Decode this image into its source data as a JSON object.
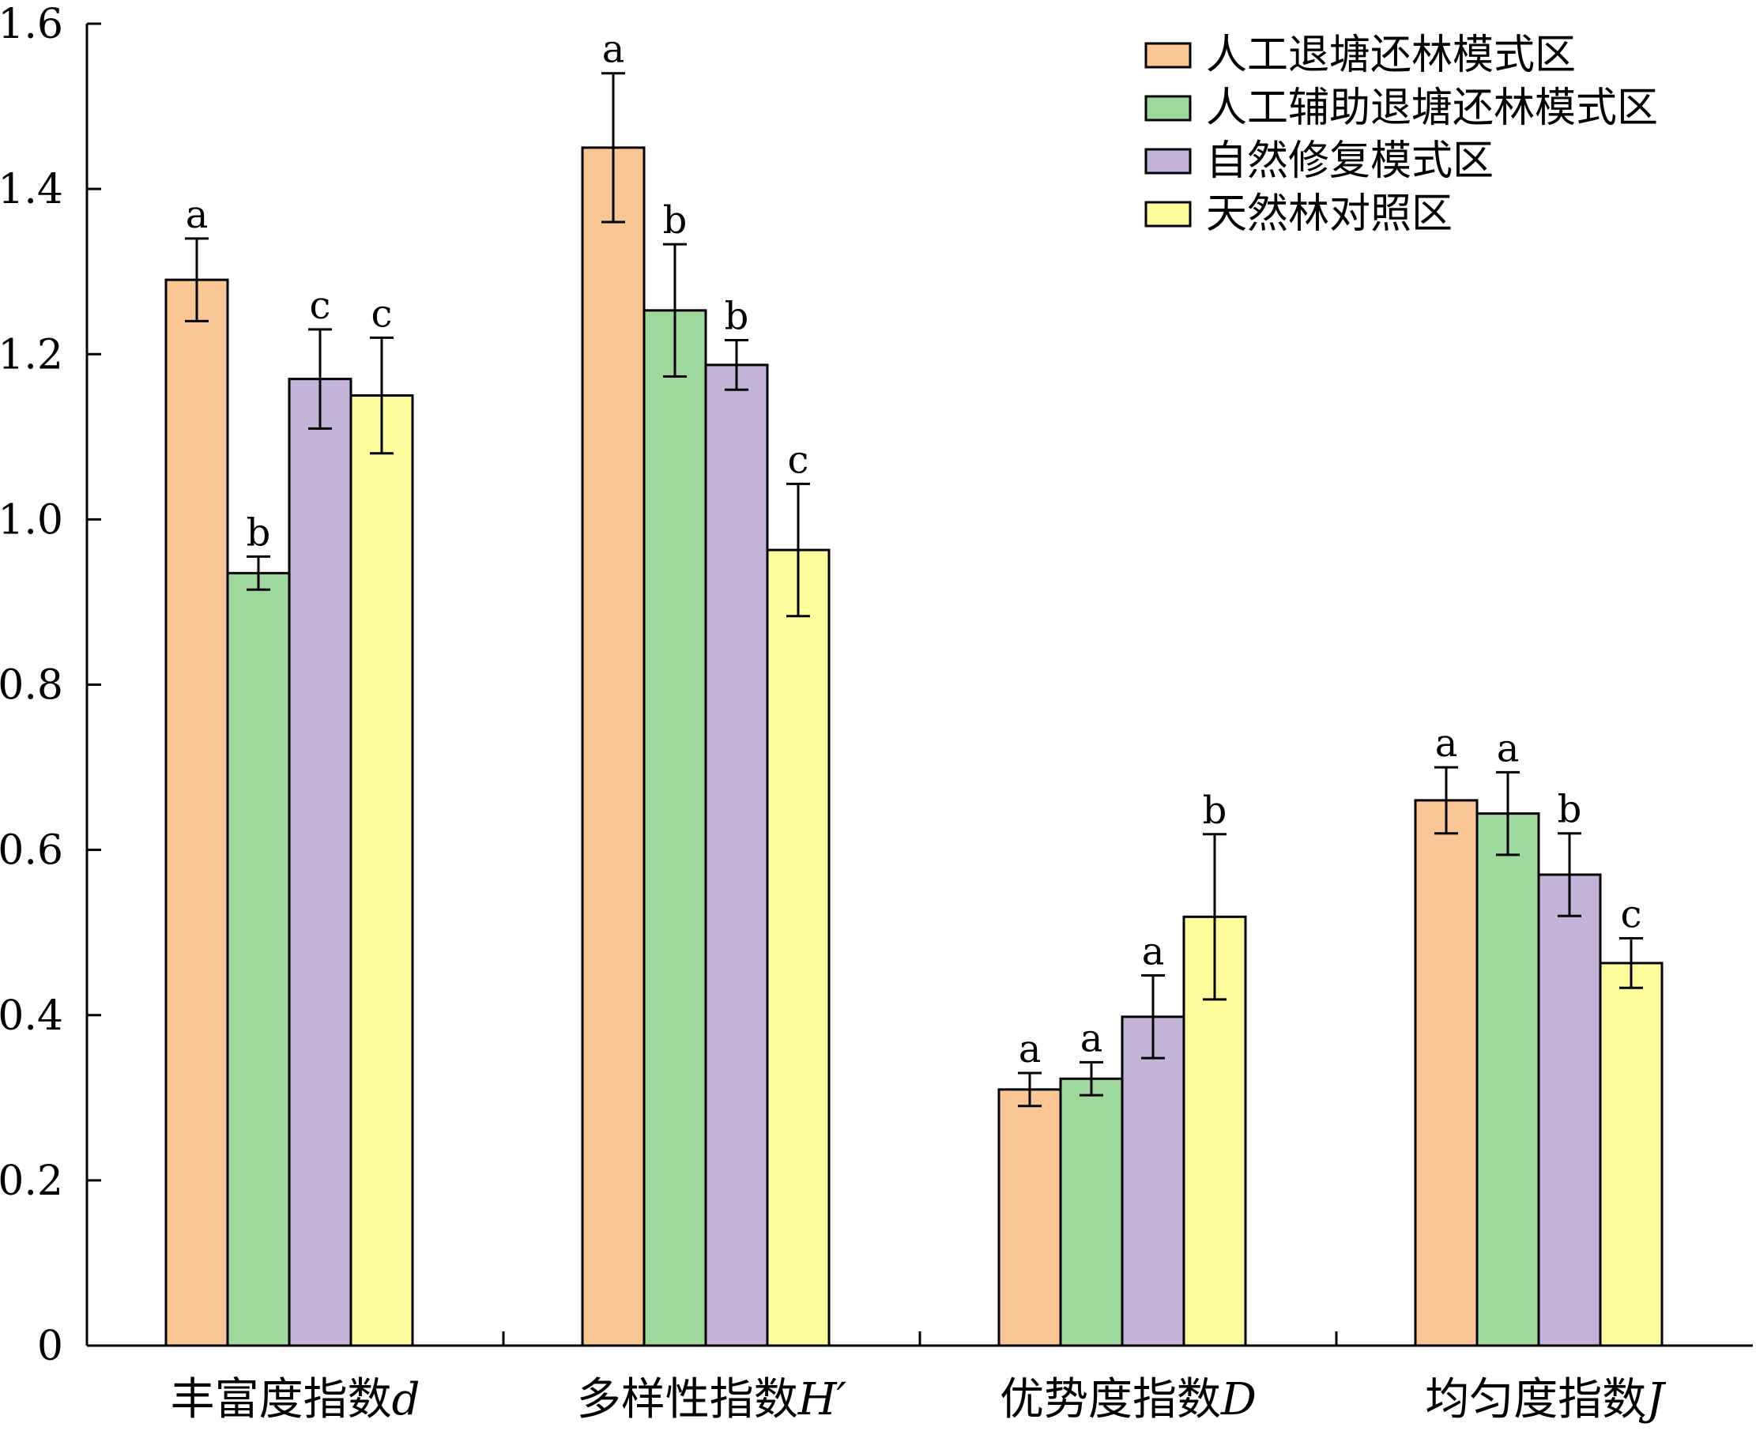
{
  "chart_data": {
    "type": "bar",
    "categories": [
      "丰富度指数d",
      "多样性指数H′",
      "优势度指数D",
      "均匀度指数J"
    ],
    "category_labels": [
      {
        "main": "丰富度指数",
        "sym": "d"
      },
      {
        "main": "多样性指数",
        "sym": "H′"
      },
      {
        "main": "优势度指数",
        "sym": "D"
      },
      {
        "main": "均匀度指数",
        "sym": "J"
      }
    ],
    "series": [
      {
        "name": "人工退塘还林模式区",
        "color": "#fac696",
        "values": [
          1.29,
          1.45,
          0.31,
          0.66
        ],
        "errors": [
          0.05,
          0.09,
          0.02,
          0.04
        ],
        "letters": [
          "a",
          "a",
          "a",
          "a"
        ]
      },
      {
        "name": "人工辅助退塘还林模式区",
        "color": "#9fd89c",
        "values": [
          0.935,
          1.253,
          0.323,
          0.644
        ],
        "errors": [
          0.02,
          0.08,
          0.02,
          0.05
        ],
        "letters": [
          "b",
          "b",
          "a",
          "a"
        ]
      },
      {
        "name": "自然修复模式区",
        "color": "#c2b3d8",
        "values": [
          1.17,
          1.187,
          0.398,
          0.57
        ],
        "errors": [
          0.06,
          0.03,
          0.05,
          0.05
        ],
        "letters": [
          "c",
          "b",
          "a",
          "b"
        ]
      },
      {
        "name": "天然林对照区",
        "color": "#ffff9f",
        "values": [
          1.15,
          0.963,
          0.519,
          0.463
        ],
        "errors": [
          0.07,
          0.08,
          0.1,
          0.03
        ],
        "letters": [
          "c",
          "c",
          "b",
          "c"
        ]
      }
    ],
    "ylim": [
      0,
      1.6
    ],
    "yticks": [
      0,
      0.2,
      0.4,
      0.6,
      0.8,
      1.0,
      1.2,
      1.4,
      1.6
    ],
    "ytick_labels": [
      "0",
      "0.2",
      "0.4",
      "0.6",
      "0.8",
      "1.0",
      "1.2",
      "1.4",
      "1.6"
    ],
    "xlabel": "",
    "ylabel": "",
    "title": "",
    "grid": false,
    "legend_position": "top-right"
  }
}
